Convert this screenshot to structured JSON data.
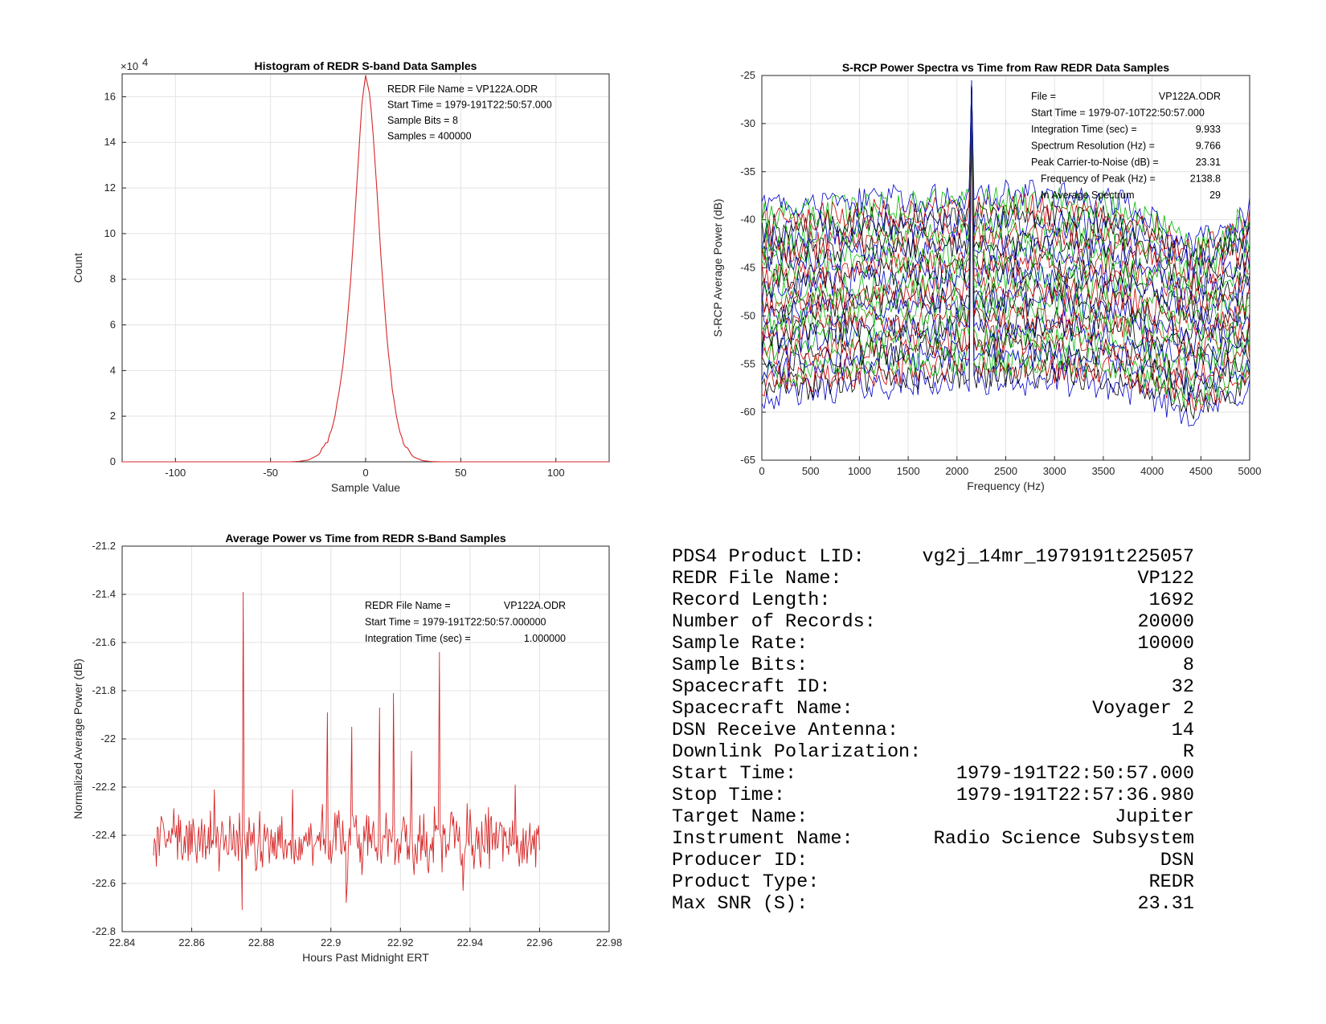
{
  "chart_data": [
    {
      "type": "line",
      "title": "Histogram of REDR S-band Data Samples",
      "xlabel": "Sample Value",
      "ylabel": "Count",
      "y_exponent_label": "×10",
      "y_exponent_power": "4",
      "xlim": [
        -128,
        128
      ],
      "ylim": [
        0,
        17
      ],
      "xticks": [
        -100,
        -50,
        0,
        50,
        100
      ],
      "yticks": [
        0,
        2,
        4,
        6,
        8,
        10,
        12,
        14,
        16
      ],
      "grid": true,
      "color": "#d62728",
      "x": [
        -128,
        -40,
        -35,
        -30,
        -25,
        -20,
        -18,
        -16,
        -14,
        -12,
        -10,
        -8,
        -6,
        -4,
        -2,
        0,
        2,
        4,
        6,
        8,
        10,
        12,
        14,
        16,
        18,
        20,
        25,
        30,
        35,
        40,
        128
      ],
      "y": [
        0,
        0,
        0.02,
        0.08,
        0.3,
        0.9,
        1.4,
        2.1,
        3.0,
        4.2,
        5.8,
        7.8,
        10.3,
        13.0,
        15.7,
        16.9,
        16.2,
        14.3,
        11.8,
        9.1,
        6.7,
        4.7,
        3.2,
        2.1,
        1.3,
        0.8,
        0.22,
        0.05,
        0.01,
        0,
        0
      ],
      "annotations": [
        "REDR File Name = VP122A.ODR",
        "Start Time = 1979-191T22:50:57.000",
        "Sample Bits = 8",
        "Samples = 400000"
      ]
    },
    {
      "type": "line",
      "title": "S-RCP Power Spectra vs Time from Raw REDR Data Samples",
      "xlabel": "Frequency (Hz)",
      "ylabel": "S-RCP Average Power (dB)",
      "xlim": [
        0,
        5000
      ],
      "ylim": [
        -65,
        -25
      ],
      "xticks": [
        0,
        500,
        1000,
        1500,
        2000,
        2500,
        3000,
        3500,
        4000,
        4500,
        5000
      ],
      "yticks": [
        -65,
        -60,
        -55,
        -50,
        -45,
        -40,
        -35,
        -30,
        -25
      ],
      "grid": true,
      "series_count": 29,
      "series_colors": [
        "#0000cc",
        "#000000",
        "#cc0000",
        "#00bb00"
      ],
      "spectrum_envelope": {
        "frequency": [
          0,
          500,
          1000,
          1500,
          2000,
          2500,
          3000,
          3500,
          3800,
          4100,
          4400,
          4700,
          5000
        ],
        "top_level": [
          -39.0,
          -38.6,
          -38.1,
          -37.8,
          -37.5,
          -37.4,
          -37.5,
          -37.9,
          -38.6,
          -40.0,
          -42.5,
          -41.0,
          -39.0
        ],
        "bottom_level": [
          -58.3,
          -57.8,
          -57.3,
          -57.0,
          -56.8,
          -56.7,
          -56.8,
          -57.1,
          -57.8,
          -58.8,
          -60.2,
          -59.2,
          -57.5
        ]
      },
      "carrier_peak": {
        "frequency": 2138.8,
        "level": -27.0
      },
      "annotations": [
        {
          "label": "File =",
          "value": "VP122A.ODR"
        },
        {
          "label": "Start Time = 1979-07-10T22:50:57.000",
          "value": ""
        },
        {
          "label": "Integration Time (sec) =",
          "value": "9.933"
        },
        {
          "label": "Spectrum Resolution (Hz) =",
          "value": "9.766"
        },
        {
          "label": "Peak Carrier-to-Noise (dB) =",
          "value": "23.31"
        },
        {
          "label": "Frequency of Peak (Hz) =",
          "value": "2138.8"
        },
        {
          "label": "In Average Spectrum",
          "value": "29"
        }
      ]
    },
    {
      "type": "line",
      "title": "Average Power vs Time from REDR S-Band Samples",
      "xlabel": "Hours Past Midnight ERT",
      "ylabel": "Normalized Average Power (dB)",
      "xlim": [
        22.84,
        22.98
      ],
      "ylim": [
        -22.8,
        -21.2
      ],
      "xticks": [
        "22.84",
        "22.86",
        "22.88",
        "22.9",
        "22.92",
        "22.94",
        "22.96",
        "22.98"
      ],
      "yticks": [
        "-22.8",
        "-22.6",
        "-22.4",
        "-22.2",
        "-22",
        "-21.8",
        "-21.6",
        "-21.4",
        "-21.2"
      ],
      "grid": true,
      "color": "#d62728",
      "x_range": [
        22.849,
        22.96
      ],
      "baseline": -22.42,
      "spikes": [
        {
          "x": 22.8665,
          "y": -22.21
        },
        {
          "x": 22.8748,
          "y": -21.39
        },
        {
          "x": 22.889,
          "y": -22.21
        },
        {
          "x": 22.899,
          "y": -21.89
        },
        {
          "x": 22.906,
          "y": -21.95
        },
        {
          "x": 22.914,
          "y": -21.87
        },
        {
          "x": 22.918,
          "y": -21.81
        },
        {
          "x": 22.9232,
          "y": -22.05
        },
        {
          "x": 22.9312,
          "y": -21.64
        },
        {
          "x": 22.953,
          "y": -22.19
        }
      ],
      "dips": [
        {
          "x": 22.8745,
          "y": -22.71
        },
        {
          "x": 22.9044,
          "y": -22.68
        },
        {
          "x": 22.938,
          "y": -22.63
        }
      ],
      "annotations": [
        {
          "label": "REDR File Name =",
          "value": "VP122A.ODR"
        },
        {
          "label": "Start Time = 1979-191T22:50:57.000000",
          "value": ""
        },
        {
          "label": "Integration Time (sec) =",
          "value": "1.000000"
        }
      ]
    }
  ],
  "summary": [
    {
      "label": "PDS4 Product LID:",
      "value": "vg2j_14mr_1979191t225057"
    },
    {
      "label": "REDR File Name:",
      "value": "VP122"
    },
    {
      "label": "Record Length:",
      "value": "1692"
    },
    {
      "label": "Number of Records:",
      "value": "20000"
    },
    {
      "label": "Sample Rate:",
      "value": "10000"
    },
    {
      "label": "Sample Bits:",
      "value": "8"
    },
    {
      "label": "Spacecraft ID:",
      "value": "32"
    },
    {
      "label": "Spacecraft Name:",
      "value": "Voyager 2"
    },
    {
      "label": "DSN Receive Antenna:",
      "value": "14"
    },
    {
      "label": "Downlink Polarization:",
      "value": "R"
    },
    {
      "label": "Start Time:",
      "value": "1979-191T22:50:57.000"
    },
    {
      "label": "Stop Time:",
      "value": "1979-191T22:57:36.980"
    },
    {
      "label": "Target Name:",
      "value": "Jupiter"
    },
    {
      "label": "Instrument Name:",
      "value": "Radio Science Subsystem"
    },
    {
      "label": "Producer ID:",
      "value": "DSN"
    },
    {
      "label": "Product Type:",
      "value": "REDR"
    },
    {
      "label": "Max SNR (S):",
      "value": "23.31"
    }
  ]
}
